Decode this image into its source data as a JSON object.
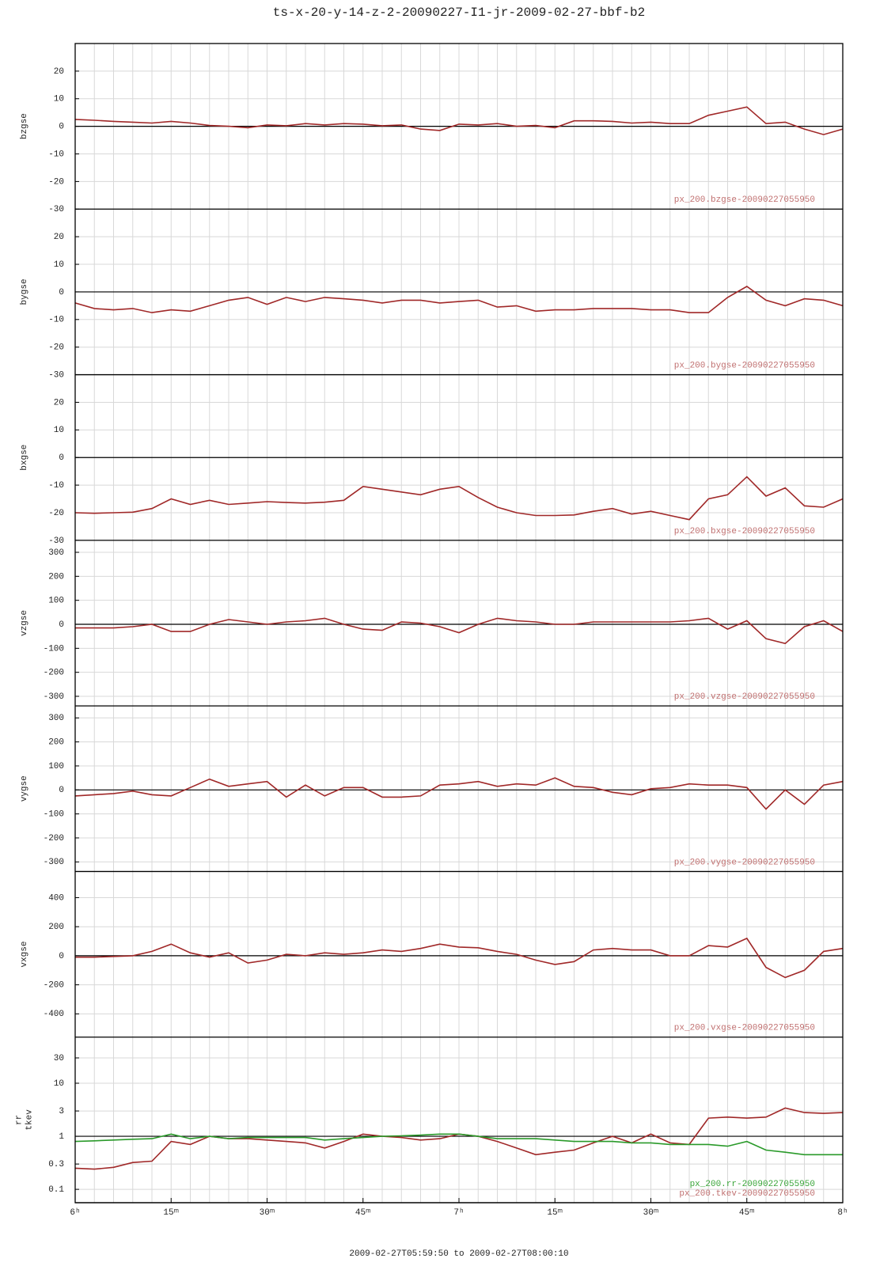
{
  "chart_data": {
    "type": "line",
    "title": "ts-x-20-y-14-z-2-20090227-I1-jr-2009-02-27-bbf-b2",
    "xlabel": "2009-02-27T05:59:50 to 2009-02-27T08:00:10",
    "xlim": [
      0,
      120
    ],
    "xticks": [
      {
        "value": 0,
        "label": "6ʰ"
      },
      {
        "value": 15,
        "label": "15ᵐ"
      },
      {
        "value": 30,
        "label": "30ᵐ"
      },
      {
        "value": 45,
        "label": "45ᵐ"
      },
      {
        "value": 60,
        "label": "7ʰ"
      },
      {
        "value": 75,
        "label": "15ᵐ"
      },
      {
        "value": 90,
        "label": "30ᵐ"
      },
      {
        "value": 105,
        "label": "45ᵐ"
      },
      {
        "value": 120,
        "label": "8ʰ"
      }
    ],
    "x": [
      0,
      3,
      6,
      9,
      12,
      15,
      18,
      21,
      24,
      27,
      30,
      33,
      36,
      39,
      42,
      45,
      48,
      51,
      54,
      57,
      60,
      63,
      66,
      69,
      72,
      75,
      78,
      81,
      84,
      87,
      90,
      93,
      96,
      99,
      102,
      105,
      108,
      111,
      114,
      117,
      120
    ],
    "grid": true,
    "panels": [
      {
        "ylabel": [
          "bzgse"
        ],
        "ylim": [
          -30,
          30
        ],
        "yticks": [
          -30,
          -20,
          -10,
          0,
          10,
          20
        ],
        "baseline": 0,
        "series": [
          {
            "color": "#a02828",
            "values": [
              2.5,
              2.2,
              1.8,
              1.5,
              1.2,
              1.8,
              1.2,
              0.3,
              0,
              -0.5,
              0.5,
              0.2,
              1,
              0.5,
              1,
              0.8,
              0.2,
              0.5,
              -1,
              -1.5,
              0.8,
              0.5,
              1,
              0,
              0.3,
              -0.5,
              2,
              2,
              1.8,
              1.2,
              1.5,
              1,
              1,
              4,
              5.5,
              7,
              1,
              1.5,
              -1,
              -3,
              -1
            ]
          }
        ],
        "annotations": [
          {
            "text": "px_200.bzgse-20090227055950",
            "color": "#c07070"
          }
        ]
      },
      {
        "ylabel": [
          "bygse"
        ],
        "ylim": [
          -30,
          30
        ],
        "yticks": [
          -30,
          -20,
          -10,
          0,
          10,
          20
        ],
        "baseline": 0,
        "series": [
          {
            "color": "#a02828",
            "values": [
              -4,
              -6,
              -6.5,
              -6,
              -7.5,
              -6.5,
              -7,
              -5,
              -3,
              -2,
              -4.5,
              -2,
              -3.5,
              -2,
              -2.5,
              -3,
              -4,
              -3,
              -3,
              -4,
              -3.5,
              -3,
              -5.5,
              -5,
              -7,
              -6.5,
              -6.5,
              -6,
              -6,
              -6,
              -6.5,
              -6.5,
              -7.5,
              -7.5,
              -2,
              2,
              -3,
              -5,
              -2.5,
              -3,
              -5
            ]
          }
        ],
        "annotations": [
          {
            "text": "px_200.bygse-20090227055950",
            "color": "#c07070"
          }
        ]
      },
      {
        "ylabel": [
          "bxgse"
        ],
        "ylim": [
          -30,
          30
        ],
        "yticks": [
          -30,
          -20,
          -10,
          0,
          10,
          20
        ],
        "baseline": 0,
        "series": [
          {
            "color": "#a02828",
            "values": [
              -20,
              -20.2,
              -20,
              -19.8,
              -18.5,
              -15,
              -17,
              -15.5,
              -17,
              -16.5,
              -16,
              -16.3,
              -16.5,
              -16.2,
              -15.5,
              -10.5,
              -11.5,
              -12.5,
              -13.5,
              -11.5,
              -10.5,
              -14.5,
              -18,
              -20,
              -21,
              -21,
              -20.8,
              -19.5,
              -18.5,
              -20.5,
              -19.5,
              -21,
              -22.5,
              -15,
              -13.5,
              -7,
              -14,
              -11,
              -17.5,
              -18,
              -15
            ]
          }
        ],
        "annotations": [
          {
            "text": "px_200.bxgse-20090227055950",
            "color": "#c07070"
          }
        ]
      },
      {
        "ylabel": [
          "vzgse"
        ],
        "ylim": [
          -340,
          350
        ],
        "yticks": [
          -300,
          -200,
          -100,
          0,
          100,
          200,
          300
        ],
        "baseline": 0,
        "series": [
          {
            "color": "#a02828",
            "values": [
              -15,
              -15,
              -15,
              -10,
              0,
              -30,
              -30,
              0,
              20,
              10,
              0,
              10,
              15,
              25,
              0,
              -20,
              -25,
              10,
              5,
              -10,
              -35,
              0,
              25,
              15,
              10,
              0,
              0,
              10,
              10,
              10,
              10,
              10,
              15,
              25,
              -20,
              15,
              -60,
              -80,
              -10,
              15,
              -30
            ]
          }
        ],
        "annotations": [
          {
            "text": "px_200.vzgse-20090227055950",
            "color": "#c07070"
          }
        ]
      },
      {
        "ylabel": [
          "vygse"
        ],
        "ylim": [
          -340,
          350
        ],
        "yticks": [
          -300,
          -200,
          -100,
          0,
          100,
          200,
          300
        ],
        "baseline": 0,
        "series": [
          {
            "color": "#a02828",
            "values": [
              -25,
              -20,
              -15,
              -5,
              -20,
              -25,
              10,
              45,
              15,
              25,
              35,
              -30,
              20,
              -25,
              10,
              10,
              -30,
              -30,
              -25,
              20,
              25,
              35,
              15,
              25,
              20,
              50,
              15,
              10,
              -10,
              -20,
              5,
              10,
              25,
              20,
              20,
              10,
              -80,
              0,
              -60,
              20,
              35
            ]
          }
        ],
        "annotations": [
          {
            "text": "px_200.vygse-20090227055950",
            "color": "#c07070"
          }
        ]
      },
      {
        "ylabel": [
          "vxgse"
        ],
        "ylim": [
          -560,
          580
        ],
        "yticks": [
          -400,
          -200,
          0,
          200,
          400
        ],
        "baseline": 0,
        "series": [
          {
            "color": "#a02828",
            "values": [
              -10,
              -10,
              -5,
              0,
              30,
              80,
              20,
              -10,
              20,
              -50,
              -30,
              10,
              0,
              20,
              10,
              20,
              40,
              30,
              50,
              80,
              60,
              55,
              30,
              10,
              -30,
              -60,
              -40,
              40,
              50,
              40,
              40,
              0,
              0,
              70,
              60,
              120,
              -80,
              -150,
              -100,
              30,
              50
            ]
          }
        ],
        "annotations": [
          {
            "text": "px_200.vxgse-20090227055950",
            "color": "#c07070"
          }
        ]
      },
      {
        "ylabel": [
          "rr",
          "tkev"
        ],
        "ylim": [
          0.056,
          74
        ],
        "log": true,
        "yticks": [
          0.1,
          0.3,
          1,
          3,
          10,
          30
        ],
        "baseline": 1,
        "series": [
          {
            "color": "#a02828",
            "values": [
              0.25,
              0.24,
              0.26,
              0.32,
              0.34,
              0.8,
              0.7,
              1,
              0.9,
              0.9,
              0.85,
              0.8,
              0.75,
              0.6,
              0.8,
              1.1,
              1,
              0.95,
              0.85,
              0.9,
              1.1,
              1,
              0.8,
              0.6,
              0.45,
              0.5,
              0.55,
              0.75,
              1,
              0.75,
              1.1,
              0.75,
              0.7,
              2.2,
              2.3,
              2.2,
              2.3,
              3.4,
              2.8,
              2.7,
              2.8
            ]
          },
          {
            "color": "#2a9a2a",
            "values": [
              0.8,
              0.82,
              0.85,
              0.88,
              0.9,
              1.1,
              0.9,
              1,
              0.9,
              0.95,
              0.95,
              0.95,
              0.95,
              0.85,
              0.9,
              0.95,
              1,
              1.02,
              1.05,
              1.1,
              1.1,
              1,
              0.9,
              0.9,
              0.9,
              0.85,
              0.8,
              0.8,
              0.8,
              0.75,
              0.75,
              0.7,
              0.7,
              0.7,
              0.65,
              0.8,
              0.55,
              0.5,
              0.45,
              0.45,
              0.45
            ]
          }
        ],
        "annotations": [
          {
            "text": "px_200.rr-20090227055950",
            "color": "#3aa63a"
          },
          {
            "text": "px_200.tkev-20090227055950",
            "color": "#c07070"
          }
        ]
      }
    ]
  }
}
